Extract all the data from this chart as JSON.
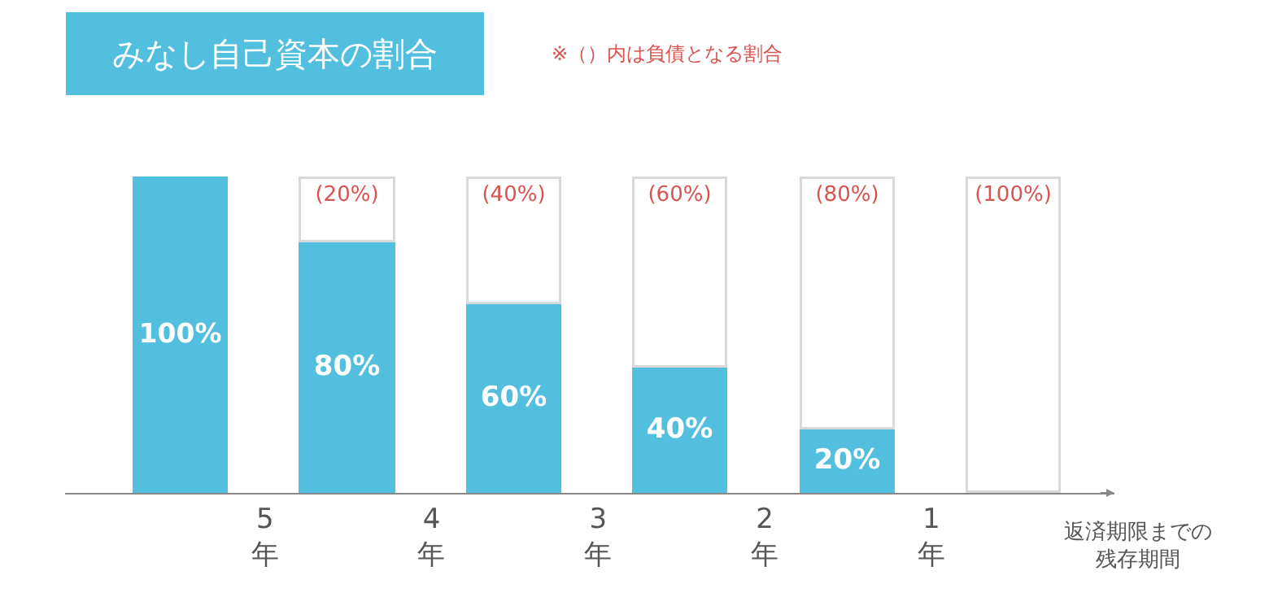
{
  "chart_data": {
    "type": "bar",
    "title": "みなし自己資本の割合",
    "stacked": true,
    "legend": false,
    "xlabel": "返済期限までの残存期間",
    "annotations": [
      "※（）内は負債となる割合"
    ],
    "x": [
      5.5,
      4.5,
      3.5,
      2.5,
      1.5,
      0.5
    ],
    "xlim": [
      6.2,
      -0.1
    ],
    "xticks": [
      {
        "value": 5,
        "label": "5\n年"
      },
      {
        "value": 4,
        "label": "4\n年"
      },
      {
        "value": 3,
        "label": "3\n年"
      },
      {
        "value": 2,
        "label": "2\n年"
      },
      {
        "value": 1,
        "label": "1\n年"
      }
    ],
    "series": [
      {
        "color": "#52bfdf",
        "values": [
          100,
          80,
          60,
          40,
          20,
          null
        ],
        "value_labels": [
          "100%",
          "80%",
          "60%",
          "40%",
          "20%",
          null
        ]
      },
      {
        "color": "#ffffff",
        "values": [
          null,
          20,
          40,
          60,
          80,
          100
        ],
        "value_labels": [
          null,
          "(20%)",
          "(40%)",
          "(60%)",
          "(80%)",
          "(100%)"
        ]
      }
    ]
  }
}
